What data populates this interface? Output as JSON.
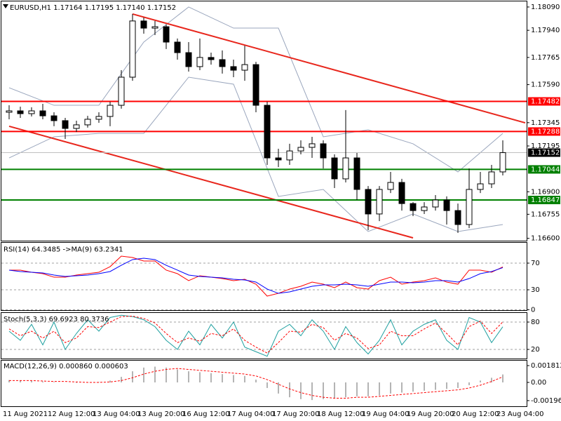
{
  "chart_data": [
    {
      "type": "candlestick",
      "title": "EURUSD,H1  1.17164 1.17195 1.17140 1.17152",
      "open": [
        1.17412,
        1.17421,
        1.17403,
        1.17421,
        1.17389,
        1.17358,
        1.17308,
        1.17331,
        1.17367,
        1.17385,
        1.17457,
        1.17638,
        1.18,
        1.17954,
        1.17963,
        1.17864,
        1.17796,
        1.17706,
        1.17765,
        1.17751,
        1.17706,
        1.17683,
        1.17719,
        1.17457,
        1.17118,
        1.17105,
        1.17163,
        1.17186,
        1.17209,
        1.17118,
        1.16983,
        1.17118,
        1.16915,
        1.16757,
        1.16915,
        1.1696,
        1.16824,
        1.16779,
        1.16802,
        1.16847,
        1.16779,
        1.16689,
        1.16915,
        1.16951,
        1.17028
      ],
      "high": [
        1.17457,
        1.17448,
        1.17444,
        1.17466,
        1.17412,
        1.17376,
        1.17358,
        1.17389,
        1.17412,
        1.1748,
        1.17683,
        1.18045,
        1.18022,
        1.18,
        1.17977,
        1.17887,
        1.17864,
        1.17887,
        1.17796,
        1.1781,
        1.17751,
        1.17841,
        1.17737,
        1.1748,
        1.17177,
        1.17209,
        1.17231,
        1.17254,
        1.17231,
        1.17141,
        1.17426,
        1.1715,
        1.16937,
        1.16937,
        1.17028,
        1.16983,
        1.16833,
        1.16833,
        1.16879,
        1.1687,
        1.16824,
        1.1705,
        1.17028,
        1.17073,
        1.17231
      ],
      "low": [
        1.17367,
        1.17376,
        1.17385,
        1.17367,
        1.17322,
        1.1724,
        1.17285,
        1.17313,
        1.17344,
        1.17322,
        1.17435,
        1.17615,
        1.17918,
        1.17909,
        1.17819,
        1.17751,
        1.17674,
        1.17683,
        1.17719,
        1.17661,
        1.17638,
        1.17615,
        1.17412,
        1.17073,
        1.17059,
        1.17073,
        1.17141,
        1.17118,
        1.1705,
        1.16924,
        1.1696,
        1.16847,
        1.16653,
        1.16711,
        1.16892,
        1.16779,
        1.16743,
        1.16757,
        1.16779,
        1.16689,
        1.16635,
        1.16666,
        1.16892,
        1.16924,
        1.17005
      ],
      "close": [
        1.17421,
        1.17403,
        1.17421,
        1.17389,
        1.17358,
        1.17308,
        1.17331,
        1.17367,
        1.17385,
        1.17457,
        1.17638,
        1.18,
        1.17954,
        1.17963,
        1.17864,
        1.17796,
        1.17706,
        1.17765,
        1.17751,
        1.17706,
        1.17683,
        1.17719,
        1.17457,
        1.17118,
        1.17105,
        1.17163,
        1.17186,
        1.17209,
        1.17118,
        1.16983,
        1.17118,
        1.16915,
        1.16757,
        1.16915,
        1.1696,
        1.16824,
        1.16779,
        1.16802,
        1.16847,
        1.16779,
        1.16689,
        1.16915,
        1.16951,
        1.17028,
        1.17152
      ],
      "up_color": "#ffffff",
      "down_color": "#000000",
      "edge_color": "#000000",
      "ylim": [
        1.16585,
        1.18126
      ],
      "yticks": [
        {
          "value": 1.1809,
          "label": "1.18090"
        },
        {
          "value": 1.1794,
          "label": "1.17940"
        },
        1.17765,
        {
          "value": 1.1759,
          "label": "1.17590"
        },
        1.17345,
        1.17195,
        {
          "value": 1.169,
          "label": "1.16900"
        },
        1.16755,
        {
          "value": 1.166,
          "label": "1.16600"
        }
      ],
      "grid": false,
      "levels": [
        {
          "value": 1.17482,
          "color": "#ff0000"
        },
        {
          "value": 1.17288,
          "color": "#ff0000"
        },
        {
          "value": 1.17044,
          "color": "#008000"
        },
        {
          "value": 1.16847,
          "color": "#008000"
        }
      ],
      "current_price": 1.17152,
      "bands": {
        "color": "#9aa6bd",
        "x": [
          0,
          4,
          8,
          12,
          16,
          20,
          24,
          28,
          32,
          36,
          40,
          44
        ],
        "upper": [
          1.1757,
          1.17457,
          1.17457,
          1.17864,
          1.1809,
          1.17954,
          1.17954,
          1.17254,
          1.17299,
          1.17209,
          1.17028,
          1.17276
        ],
        "lower": [
          1.17118,
          1.17254,
          1.17276,
          1.17276,
          1.17638,
          1.17593,
          1.1687,
          1.16915,
          1.16644,
          1.16757,
          1.16644,
          1.16689
        ]
      },
      "trendlines": {
        "color": "#e8261c",
        "lines": [
          {
            "x": [
              11,
              46
            ],
            "y": [
              1.18045,
              1.17344
            ]
          },
          {
            "x": [
              0,
              36
            ],
            "y": [
              1.17322,
              1.16603
            ]
          }
        ]
      }
    },
    {
      "type": "line",
      "title": "RSI(14) 64.3485  ->MA(9) 63.2341",
      "ylim": [
        0,
        100
      ],
      "yticks": [
        70,
        30,
        0
      ],
      "grid": true,
      "series": [
        {
          "color": "#ff0000",
          "values": [
            59.5,
            59.5,
            56.3,
            54.2,
            48.9,
            48.9,
            52.1,
            54.2,
            56.3,
            64.7,
            80.5,
            78.4,
            73.2,
            73.2,
            59.5,
            54.2,
            43.7,
            51.1,
            48.9,
            46.8,
            43.7,
            45.8,
            38.4,
            20.5,
            24.7,
            31.1,
            35.3,
            41.6,
            38.4,
            33.2,
            41.6,
            33.2,
            31.1,
            43.7,
            48.9,
            38.4,
            41.6,
            43.7,
            47.9,
            41.6,
            38.4,
            59.5,
            59.5,
            56.3,
            64.3
          ]
        },
        {
          "color": "#0000ff",
          "values": [
            59.5,
            57.4,
            56.3,
            55.3,
            52.1,
            50.0,
            51.1,
            52.1,
            54.2,
            57.4,
            66.8,
            75.3,
            77.4,
            75.3,
            66.8,
            59.5,
            52.1,
            50.0,
            48.9,
            47.9,
            45.8,
            44.7,
            41.6,
            31.1,
            24.7,
            26.8,
            31.1,
            35.3,
            37.4,
            37.4,
            38.4,
            37.4,
            35.3,
            38.4,
            41.6,
            41.6,
            40.5,
            41.6,
            43.7,
            43.7,
            41.6,
            46.8,
            54.2,
            57.4,
            63.2
          ]
        }
      ]
    },
    {
      "type": "line",
      "title": "Stoch(5,3,3) 69.6923 80.3736",
      "ylim": [
        0,
        100
      ],
      "yticks": [
        80,
        20
      ],
      "grid": true,
      "series": [
        {
          "color": "#20a0a0",
          "values": [
            60,
            40,
            75,
            30,
            80,
            20,
            55,
            85,
            60,
            90,
            95,
            92,
            85,
            70,
            40,
            20,
            60,
            30,
            75,
            45,
            80,
            25,
            15,
            5,
            60,
            75,
            50,
            85,
            60,
            20,
            70,
            35,
            10,
            40,
            85,
            30,
            60,
            75,
            85,
            40,
            20,
            90,
            80,
            35,
            69.7
          ]
        },
        {
          "color": "#ff0000",
          "dash": true,
          "values": [
            65,
            50,
            60,
            45,
            60,
            35,
            45,
            70,
            68,
            80,
            92,
            93,
            88,
            78,
            55,
            35,
            45,
            38,
            55,
            50,
            65,
            40,
            25,
            12,
            35,
            60,
            58,
            75,
            68,
            40,
            55,
            45,
            22,
            30,
            60,
            50,
            50,
            65,
            78,
            55,
            30,
            70,
            82,
            55,
            80.4
          ]
        }
      ]
    },
    {
      "type": "combo",
      "title": "MACD(12,26,9) 0.000860 0.000603",
      "ylim": [
        -0.00257,
        0.00242
      ],
      "yticks": [
        0.001812,
        {
          "value": 0,
          "label": "0.00"
        },
        -0.00196
      ],
      "grid": false,
      "categories": [
        "11 Aug 2021",
        null,
        null,
        null,
        "12 Aug 12:00",
        null,
        null,
        null,
        "13 Aug 04:00",
        null,
        null,
        null,
        "13 Aug 20:00",
        null,
        null,
        null,
        "16 Aug 12:00",
        null,
        null,
        null,
        "17 Aug 04:00",
        null,
        null,
        null,
        "17 Aug 20:00",
        null,
        null,
        null,
        "18 Aug 12:00",
        null,
        null,
        null,
        "19 Aug 04:00",
        null,
        null,
        null,
        "19 Aug 20:00",
        null,
        null,
        null,
        "20 Aug 12:00",
        null,
        null,
        null,
        "23 Aug 04:00"
      ],
      "series": [
        {
          "type": "bar",
          "color": "#b4b4b4",
          "values": [
            0.00025,
            0.0002,
            0.00015,
            0.0001,
            5e-05,
            0,
            -5e-05,
            0,
            5e-05,
            0.0002,
            0.0006,
            0.0012,
            0.0016,
            0.0017,
            0.0016,
            0.0014,
            0.0012,
            0.0011,
            0.001,
            0.0009,
            0.0008,
            0.0007,
            0.0003,
            -0.0006,
            -0.0012,
            -0.0016,
            -0.0018,
            -0.0019,
            -0.0018,
            -0.0017,
            -0.0016,
            -0.0015,
            -0.0015,
            -0.0014,
            -0.0012,
            -0.0011,
            -0.001,
            -0.0009,
            -0.0008,
            -0.0007,
            -0.0006,
            -0.0003,
            0.0002,
            0.0005,
            0.00086
          ]
        },
        {
          "type": "line",
          "color": "#ff0000",
          "dash": true,
          "values": [
            0.0002,
            0.0002,
            0.0002,
            0.00015,
            0.0001,
            0.0001,
            5e-05,
            0,
            0,
            5e-05,
            0.0002,
            0.0005,
            0.0009,
            0.0012,
            0.0014,
            0.0015,
            0.0014,
            0.0013,
            0.0012,
            0.0011,
            0.001,
            0.0009,
            0.0007,
            0.0003,
            -0.0002,
            -0.0007,
            -0.0011,
            -0.0014,
            -0.0016,
            -0.0017,
            -0.0017,
            -0.0016,
            -0.0016,
            -0.0015,
            -0.0014,
            -0.0013,
            -0.0012,
            -0.0011,
            -0.001,
            -0.0009,
            -0.0008,
            -0.0006,
            -0.0003,
            0.0001,
            0.000603
          ]
        }
      ]
    }
  ]
}
